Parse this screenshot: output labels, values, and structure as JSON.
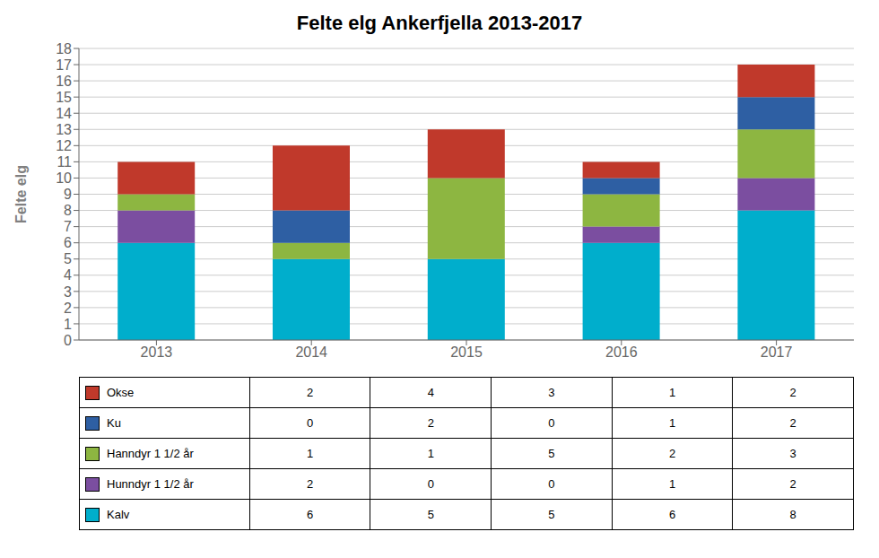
{
  "chart_data": {
    "type": "bar",
    "title": "Felte elg Ankerfjella 2013-2017",
    "ylabel": "Felte elg",
    "categories": [
      "2013",
      "2014",
      "2015",
      "2016",
      "2017"
    ],
    "stacked": true,
    "grid": true,
    "ylim": [
      0,
      18
    ],
    "yticks": [
      0,
      1,
      2,
      3,
      4,
      5,
      6,
      7,
      8,
      9,
      10,
      11,
      12,
      13,
      14,
      15,
      16,
      17,
      18
    ],
    "series": [
      {
        "name": "Kalv",
        "color": "#00AECC",
        "values": [
          6,
          5,
          5,
          6,
          8
        ]
      },
      {
        "name": "Hunndyr 1 1/2 år",
        "color": "#7B4EA0",
        "values": [
          2,
          0,
          0,
          1,
          2
        ]
      },
      {
        "name": "Hanndyr 1 1/2 år",
        "color": "#8DB641",
        "values": [
          1,
          1,
          5,
          2,
          3
        ]
      },
      {
        "name": "Ku",
        "color": "#2E5FA3",
        "values": [
          0,
          2,
          0,
          1,
          2
        ]
      },
      {
        "name": "Okse",
        "color": "#C0392B",
        "values": [
          2,
          4,
          3,
          1,
          2
        ]
      }
    ]
  }
}
